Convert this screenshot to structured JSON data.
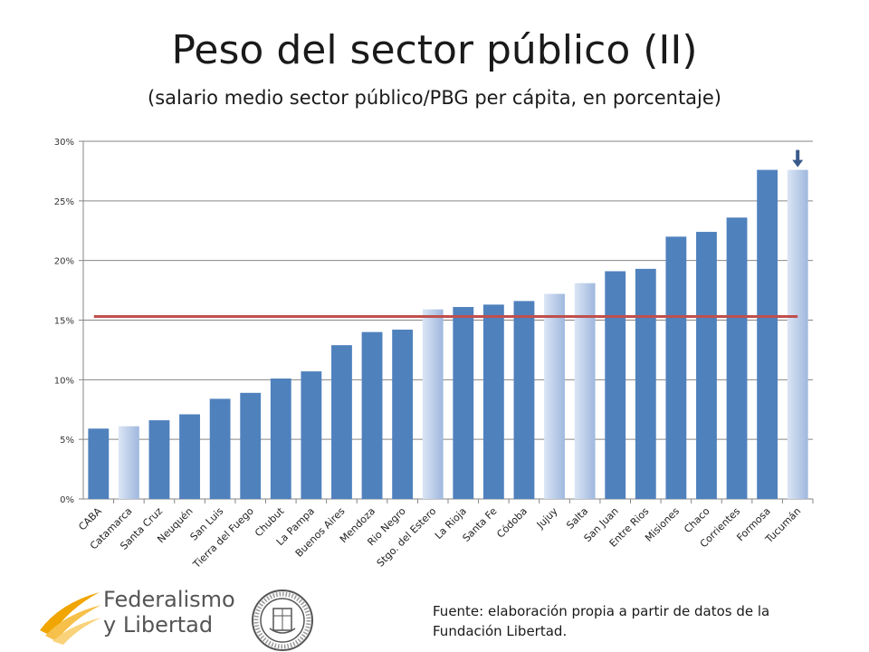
{
  "slide": {
    "title": "Peso del sector público (II)",
    "subtitle": "(salario medio sector público/PBG per cápita, en porcentaje)",
    "source": "Fuente: elaboración propia a partir de datos de la Fundación Libertad.",
    "logo": {
      "name_line1": "Federalismo",
      "name_line2": "y Libertad",
      "icon": "federalismo-y-libertad-logo-icon"
    },
    "seal_icon": "university-seal-icon"
  },
  "colors": {
    "bar": "#4f81bd",
    "bar_highlight_top": "#9fb8de",
    "bar_highlight_bottom": "#dbe5f5",
    "reference_line": "#c0504d",
    "grid": "#868686",
    "arrow": "#3a5a8c",
    "logo_orange": "#f0a500"
  },
  "chart_data": {
    "type": "bar",
    "title": "",
    "xlabel": "",
    "ylabel": "",
    "ylim": [
      0,
      30
    ],
    "yticks": [
      "0%",
      "5%",
      "10%",
      "15%",
      "20%",
      "25%",
      "30%"
    ],
    "grid": true,
    "categories": [
      "CABA",
      "Catamarca",
      "Santa Cruz",
      "Neuquén",
      "San Luis",
      "Tierra del Fuego",
      "Chubut",
      "La Pampa",
      "Buenos Aires",
      "Mendoza",
      "Rio Negro",
      "Stgo. del Estero",
      "La Rioja",
      "Santa Fe",
      "Códoba",
      "Jujuy",
      "Salta",
      "San Juan",
      "Entre Rios",
      "Misiones",
      "Chaco",
      "Corrientes",
      "Formosa",
      "Tucumán"
    ],
    "values": [
      5.9,
      6.1,
      6.6,
      7.1,
      8.4,
      8.9,
      10.1,
      10.7,
      12.9,
      14.0,
      14.2,
      15.9,
      16.1,
      16.3,
      16.6,
      17.2,
      18.1,
      19.1,
      19.3,
      22.0,
      22.4,
      23.6,
      27.6,
      27.6
    ],
    "highlighted": [
      "Catamarca",
      "Stgo. del Estero",
      "Jujuy",
      "Salta",
      "Tucumán"
    ],
    "reference_line": 15.3,
    "arrow_marker": "Tucumán"
  }
}
